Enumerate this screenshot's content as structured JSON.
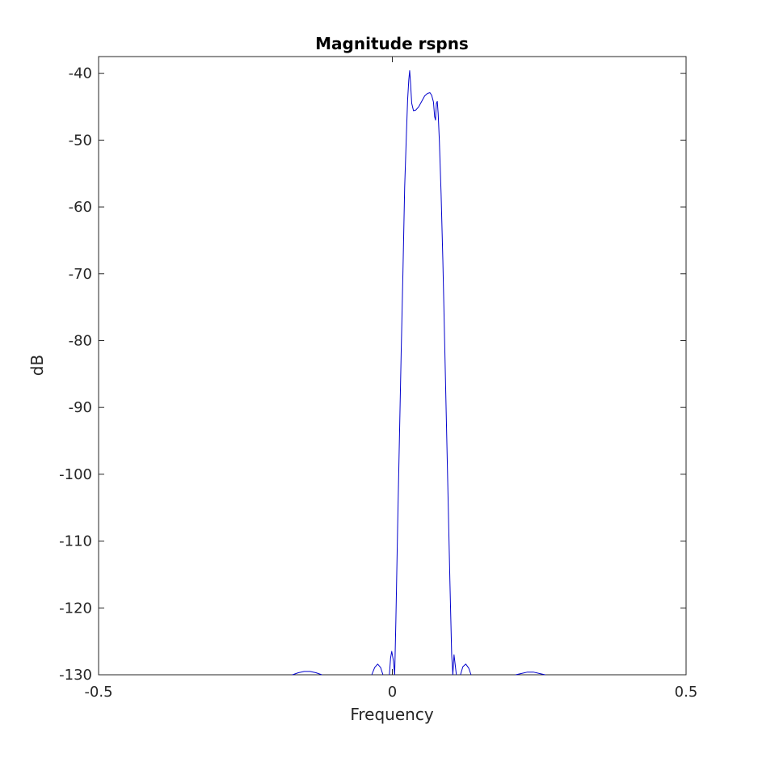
{
  "chart_data": {
    "type": "line",
    "title": "Magnitude rspns",
    "xlabel": "Frequency",
    "ylabel": "dB",
    "xlim": [
      -0.5,
      0.5
    ],
    "ylim": [
      -130,
      -37.5
    ],
    "xticks": [
      -0.5,
      0,
      0.5
    ],
    "xtick_labels": [
      "-0.5",
      "0",
      "0.5"
    ],
    "yticks": [
      -130,
      -120,
      -110,
      -100,
      -90,
      -80,
      -70,
      -60,
      -50,
      -40
    ],
    "ytick_labels": [
      "-130",
      "-120",
      "-110",
      "-100",
      "-90",
      "-80",
      "-70",
      "-60",
      "-50",
      "-40"
    ],
    "grid": false,
    "series": [
      {
        "color": "#0000cc",
        "segments": [
          [
            [
              -0.17,
              -130
            ],
            [
              -0.16,
              -129.7
            ],
            [
              -0.15,
              -129.5
            ],
            [
              -0.14,
              -129.5
            ],
            [
              -0.13,
              -129.7
            ],
            [
              -0.12,
              -130
            ]
          ],
          [
            [
              -0.035,
              -130
            ],
            [
              -0.03,
              -128.9
            ],
            [
              -0.025,
              -128.4
            ],
            [
              -0.02,
              -128.9
            ],
            [
              -0.016,
              -130
            ]
          ],
          [
            [
              -0.005,
              -130
            ],
            [
              -0.003,
              -127.5
            ],
            [
              -0.001,
              -126.5
            ],
            [
              0.002,
              -128
            ],
            [
              0.004,
              -130
            ]
          ],
          [
            [
              0.004,
              -130
            ],
            [
              0.006,
              -122
            ],
            [
              0.009,
              -108
            ],
            [
              0.012,
              -95
            ],
            [
              0.015,
              -82
            ],
            [
              0.018,
              -70
            ],
            [
              0.021,
              -57
            ],
            [
              0.024,
              -49
            ],
            [
              0.026,
              -44
            ],
            [
              0.028,
              -41
            ],
            [
              0.0295,
              -39.6
            ],
            [
              0.031,
              -41.5
            ],
            [
              0.033,
              -44.5
            ],
            [
              0.036,
              -45.6
            ],
            [
              0.04,
              -45.5
            ],
            [
              0.045,
              -45
            ],
            [
              0.05,
              -44.2
            ],
            [
              0.055,
              -43.4
            ],
            [
              0.06,
              -43
            ],
            [
              0.064,
              -42.9
            ],
            [
              0.067,
              -43.3
            ],
            [
              0.07,
              -44.3
            ],
            [
              0.072,
              -46.5
            ],
            [
              0.0735,
              -47
            ],
            [
              0.075,
              -44.5
            ],
            [
              0.0765,
              -44.2
            ],
            [
              0.078,
              -46
            ],
            [
              0.08,
              -50
            ],
            [
              0.083,
              -58
            ],
            [
              0.086,
              -68
            ],
            [
              0.089,
              -80
            ],
            [
              0.092,
              -92
            ],
            [
              0.095,
              -104
            ],
            [
              0.098,
              -116
            ],
            [
              0.101,
              -127
            ],
            [
              0.103,
              -130
            ]
          ],
          [
            [
              0.103,
              -130
            ],
            [
              0.105,
              -127
            ],
            [
              0.107,
              -128.5
            ],
            [
              0.109,
              -130
            ]
          ],
          [
            [
              0.116,
              -130
            ],
            [
              0.12,
              -128.8
            ],
            [
              0.125,
              -128.4
            ],
            [
              0.13,
              -129
            ],
            [
              0.134,
              -130
            ]
          ],
          [
            [
              0.21,
              -130
            ],
            [
              0.22,
              -129.8
            ],
            [
              0.23,
              -129.6
            ],
            [
              0.24,
              -129.6
            ],
            [
              0.25,
              -129.8
            ],
            [
              0.26,
              -130
            ]
          ]
        ]
      }
    ]
  }
}
